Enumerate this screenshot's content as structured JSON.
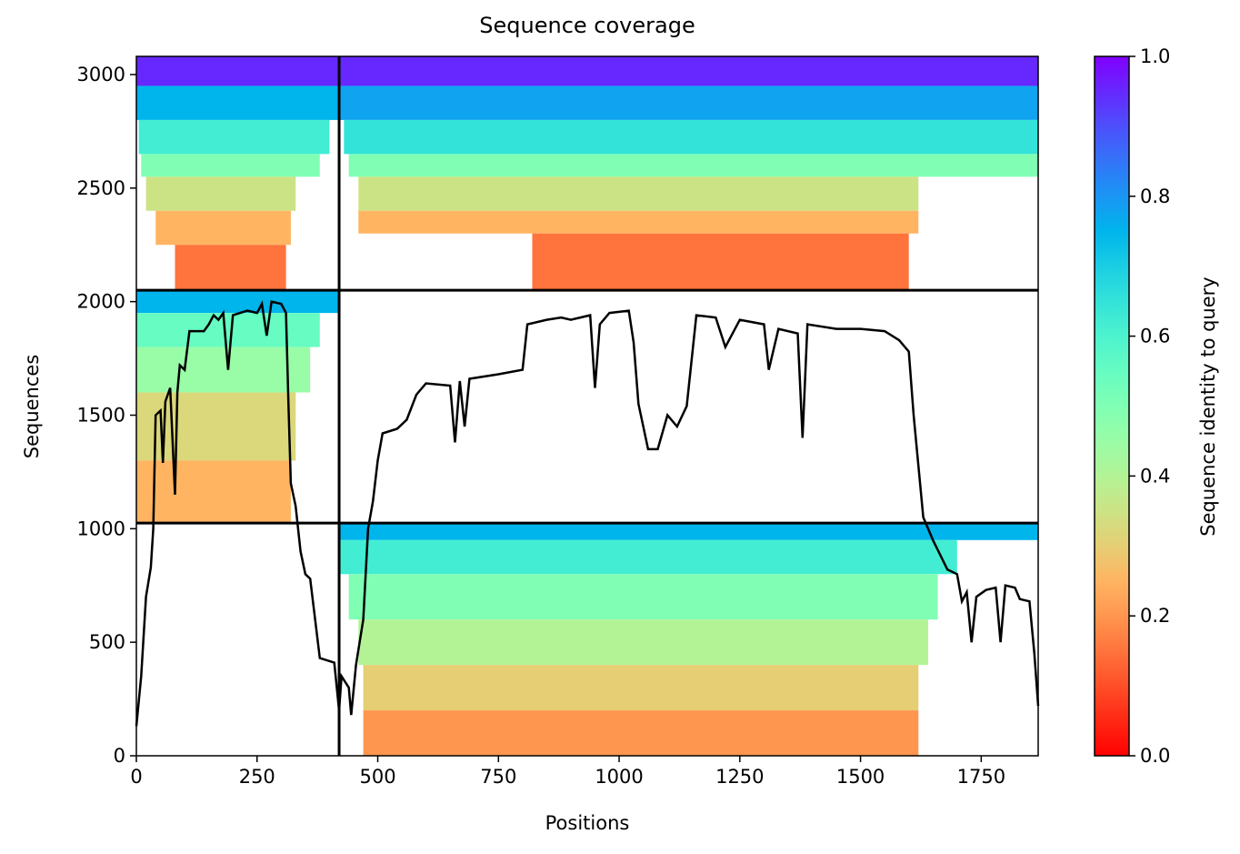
{
  "chart_data": {
    "type": "msa_coverage",
    "title": "Sequence coverage",
    "xlabel": "Positions",
    "ylabel": "Sequences",
    "xlim": [
      0,
      1868
    ],
    "ylim": [
      0,
      3080
    ],
    "xticks": [
      0,
      250,
      500,
      750,
      1000,
      1250,
      1500,
      1750
    ],
    "yticks": [
      0,
      500,
      1000,
      1500,
      2000,
      2500,
      3000
    ],
    "colormap": "rainbow_r",
    "colorbar": {
      "label": "Sequence identity to query",
      "lim": [
        0,
        1
      ],
      "ticks": [
        {
          "value": 0,
          "label": "0.0"
        },
        {
          "value": 0.2,
          "label": "0.2"
        },
        {
          "value": 0.4,
          "label": "0.4"
        },
        {
          "value": 0.6,
          "label": "0.6"
        },
        {
          "value": 0.8,
          "label": "0.8"
        },
        {
          "value": 1,
          "label": "1.0"
        }
      ]
    },
    "alignment_blocks": [
      {
        "x": [
          0,
          420
        ],
        "y": [
          2950,
          3080
        ],
        "identity": 0.95
      },
      {
        "x": [
          0,
          420
        ],
        "y": [
          2800,
          2950
        ],
        "identity": 0.75
      },
      {
        "x": [
          5,
          400
        ],
        "y": [
          2650,
          2800
        ],
        "identity": 0.62
      },
      {
        "x": [
          10,
          380
        ],
        "y": [
          2550,
          2650
        ],
        "identity": 0.5
      },
      {
        "x": [
          20,
          330
        ],
        "y": [
          2400,
          2550
        ],
        "identity": 0.35
      },
      {
        "x": [
          40,
          320
        ],
        "y": [
          2250,
          2400
        ],
        "identity": 0.25
      },
      {
        "x": [
          80,
          310
        ],
        "y": [
          2050,
          2250
        ],
        "identity": 0.15
      },
      {
        "x": [
          420,
          1868
        ],
        "y": [
          2950,
          3080
        ],
        "identity": 0.95
      },
      {
        "x": [
          420,
          1868
        ],
        "y": [
          2800,
          2950
        ],
        "identity": 0.78
      },
      {
        "x": [
          430,
          1868
        ],
        "y": [
          2650,
          2800
        ],
        "identity": 0.65
      },
      {
        "x": [
          440,
          1868
        ],
        "y": [
          2550,
          2650
        ],
        "identity": 0.5
      },
      {
        "x": [
          460,
          1620
        ],
        "y": [
          2400,
          2550
        ],
        "identity": 0.35
      },
      {
        "x": [
          460,
          1620
        ],
        "y": [
          2300,
          2400
        ],
        "identity": 0.25
      },
      {
        "x": [
          820,
          1600
        ],
        "y": [
          2050,
          2300
        ],
        "identity": 0.15
      },
      {
        "x": [
          0,
          420
        ],
        "y": [
          1950,
          2050
        ],
        "identity": 0.75
      },
      {
        "x": [
          0,
          380
        ],
        "y": [
          1800,
          1950
        ],
        "identity": 0.55
      },
      {
        "x": [
          0,
          360
        ],
        "y": [
          1600,
          1800
        ],
        "identity": 0.45
      },
      {
        "x": [
          0,
          330
        ],
        "y": [
          1300,
          1600
        ],
        "identity": 0.32
      },
      {
        "x": [
          0,
          320
        ],
        "y": [
          1025,
          1300
        ],
        "identity": 0.25
      },
      {
        "x": [
          420,
          1868
        ],
        "y": [
          950,
          1025
        ],
        "identity": 0.75
      },
      {
        "x": [
          420,
          1700
        ],
        "y": [
          800,
          950
        ],
        "identity": 0.62
      },
      {
        "x": [
          440,
          1660
        ],
        "y": [
          600,
          800
        ],
        "identity": 0.5
      },
      {
        "x": [
          460,
          1640
        ],
        "y": [
          400,
          600
        ],
        "identity": 0.4
      },
      {
        "x": [
          470,
          1620
        ],
        "y": [
          200,
          400
        ],
        "identity": 0.3
      },
      {
        "x": [
          470,
          1620
        ],
        "y": [
          0,
          200
        ],
        "identity": 0.2
      }
    ],
    "dividers": {
      "x": [
        420
      ],
      "y": [
        1025,
        2050
      ]
    },
    "coverage": {
      "color": "#000000",
      "x": [
        0,
        10,
        20,
        30,
        35,
        40,
        50,
        55,
        60,
        70,
        80,
        85,
        90,
        100,
        110,
        140,
        150,
        160,
        170,
        180,
        190,
        200,
        230,
        250,
        260,
        270,
        280,
        300,
        310,
        315,
        320,
        330,
        340,
        350,
        360,
        380,
        410,
        420,
        425,
        440,
        445,
        455,
        470,
        480,
        490,
        500,
        510,
        540,
        560,
        580,
        600,
        650,
        660,
        670,
        680,
        690,
        750,
        800,
        810,
        850,
        880,
        900,
        940,
        950,
        960,
        980,
        1020,
        1030,
        1040,
        1060,
        1080,
        1100,
        1120,
        1140,
        1160,
        1200,
        1220,
        1250,
        1300,
        1310,
        1330,
        1370,
        1380,
        1390,
        1450,
        1500,
        1550,
        1580,
        1600,
        1610,
        1630,
        1650,
        1680,
        1700,
        1710,
        1720,
        1730,
        1740,
        1760,
        1780,
        1790,
        1800,
        1820,
        1830,
        1850,
        1860,
        1868
      ],
      "y": [
        130,
        350,
        700,
        830,
        1000,
        1500,
        1520,
        1290,
        1560,
        1620,
        1150,
        1600,
        1720,
        1700,
        1870,
        1870,
        1900,
        1940,
        1920,
        1950,
        1700,
        1940,
        1960,
        1950,
        1990,
        1850,
        2000,
        1990,
        1950,
        1550,
        1200,
        1100,
        900,
        800,
        780,
        430,
        410,
        200,
        350,
        300,
        180,
        400,
        600,
        1000,
        1120,
        1300,
        1420,
        1440,
        1480,
        1590,
        1640,
        1630,
        1380,
        1650,
        1450,
        1660,
        1680,
        1700,
        1900,
        1920,
        1930,
        1920,
        1940,
        1620,
        1900,
        1950,
        1960,
        1820,
        1550,
        1350,
        1350,
        1500,
        1450,
        1540,
        1940,
        1930,
        1800,
        1920,
        1900,
        1700,
        1880,
        1860,
        1400,
        1900,
        1880,
        1880,
        1870,
        1830,
        1780,
        1500,
        1050,
        950,
        820,
        800,
        680,
        720,
        500,
        700,
        730,
        740,
        500,
        750,
        740,
        690,
        680,
        450,
        220
      ]
    }
  }
}
